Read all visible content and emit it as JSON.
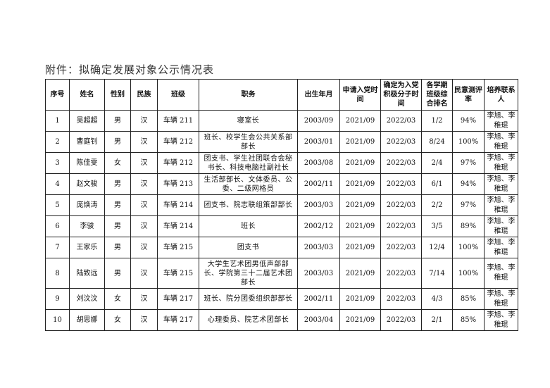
{
  "title": "附件：拟确定发展对象公示情况表",
  "headers": [
    "序号",
    "姓名",
    "性别",
    "民族",
    "班级",
    "职务",
    "出生年月",
    "申请入党时间",
    "确定为入党积极分子时间",
    "各学期班级综合排名",
    "民意测评率",
    "培养联系人"
  ],
  "rows": [
    [
      "1",
      "吴超超",
      "男",
      "汉",
      "车辆 211",
      "寝室长",
      "2003/09",
      "2021/09",
      "2022/03",
      "1/2",
      "94%",
      "李旭、李稚琨"
    ],
    [
      "2",
      "曹庭钊",
      "男",
      "汉",
      "车辆 212",
      "班长、校学生会公共关系部部长",
      "2003/01",
      "2021/09",
      "2022/03",
      "8/24",
      "100%",
      "李旭、李稚琨"
    ],
    [
      "3",
      "陈佳雯",
      "女",
      "汉",
      "车辆 212",
      "团支书、学生社团联合会秘书长、科技电脑社副社长",
      "2003/08",
      "2021/09",
      "2022/03",
      "2/4",
      "97%",
      "李旭、李稚琨"
    ],
    [
      "4",
      "赵文骏",
      "男",
      "汉",
      "车辆 213",
      "生活部部长、文体委员、公委、二级网格员",
      "2002/11",
      "2021/09",
      "2022/03",
      "6/1",
      "94%",
      "李旭、李稚琨"
    ],
    [
      "5",
      "庞焕涛",
      "男",
      "汉",
      "车辆 214",
      "团支书、院志联组策部部长",
      "2003/03",
      "2021/09",
      "2022/03",
      "2/2",
      "97%",
      "李旭、李稚琨"
    ],
    [
      "6",
      "李骏",
      "男",
      "汉",
      "车辆 214",
      "班长",
      "2002/12",
      "2021/09",
      "2022/03",
      "3/5",
      "89%",
      "李旭、李稚琨"
    ],
    [
      "7",
      "王家乐",
      "男",
      "汉",
      "车辆 215",
      "团支书",
      "2003/03",
      "2021/09",
      "2022/03",
      "12/4",
      "100%",
      "李旭、李稚琨"
    ],
    [
      "8",
      "陆致远",
      "男",
      "汉",
      "车辆 215",
      "大学生艺术团男低声部部长、学院第三十二届艺术团部长",
      "2003/03",
      "2021/09",
      "2022/03",
      "7/14",
      "100%",
      "李旭、李稚琨"
    ],
    [
      "9",
      "刘汶汶",
      "女",
      "汉",
      "车辆 217",
      "班长、院分团委组织部部长",
      "2002/11",
      "2021/09",
      "2022/03",
      "4/3",
      "85%",
      "李旭、李稚琨"
    ],
    [
      "10",
      "胡思娜",
      "女",
      "汉",
      "车辆 217",
      "心理委员、院艺术团部长",
      "2003/04",
      "2021/09",
      "2022/03",
      "2/1",
      "85%",
      "李旭、李稚琨"
    ]
  ]
}
